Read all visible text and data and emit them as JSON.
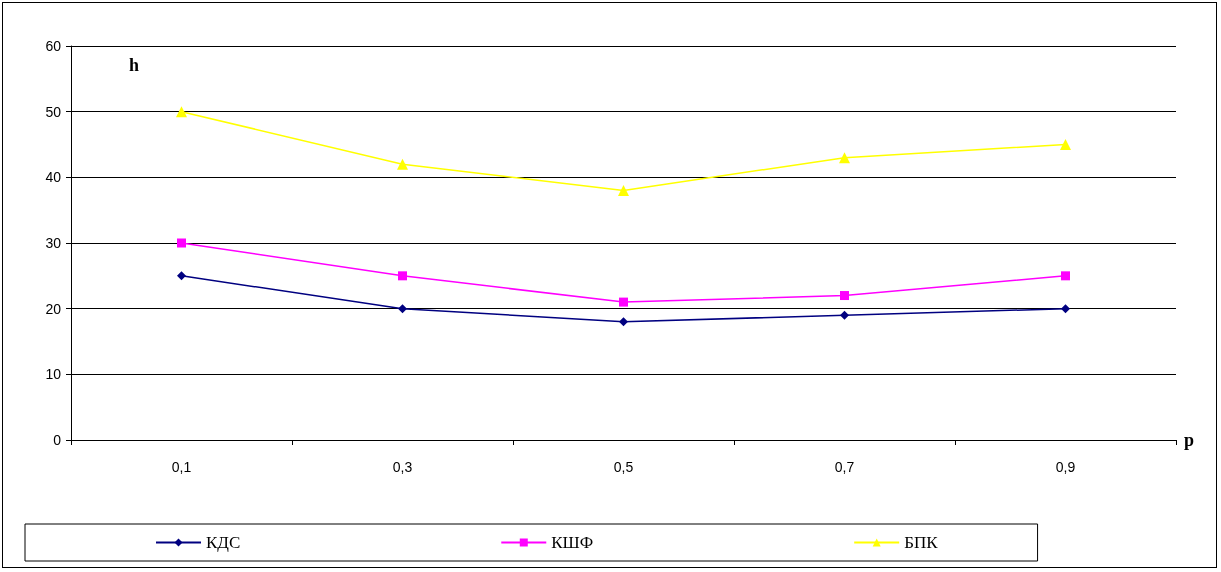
{
  "chart_data": {
    "type": "line",
    "xlabel": "p",
    "ylabel": "h",
    "categories": [
      "0,1",
      "0,3",
      "0,5",
      "0,7",
      "0,9"
    ],
    "series": [
      {
        "name": "КДС",
        "color": "#000080",
        "marker": "diamond",
        "values": [
          25,
          20,
          18,
          19,
          20
        ]
      },
      {
        "name": "КШФ",
        "color": "#ff00ff",
        "marker": "square",
        "values": [
          30,
          25,
          21,
          22,
          25
        ]
      },
      {
        "name": "БПК",
        "color": "#ffff00",
        "marker": "triangle",
        "values": [
          50,
          42,
          38,
          43,
          45
        ]
      }
    ],
    "ylim": [
      0,
      60
    ],
    "yticks": [
      0,
      10,
      20,
      30,
      40,
      50,
      60
    ],
    "grid": "y",
    "legend": "bottom",
    "line_style": "solid"
  }
}
